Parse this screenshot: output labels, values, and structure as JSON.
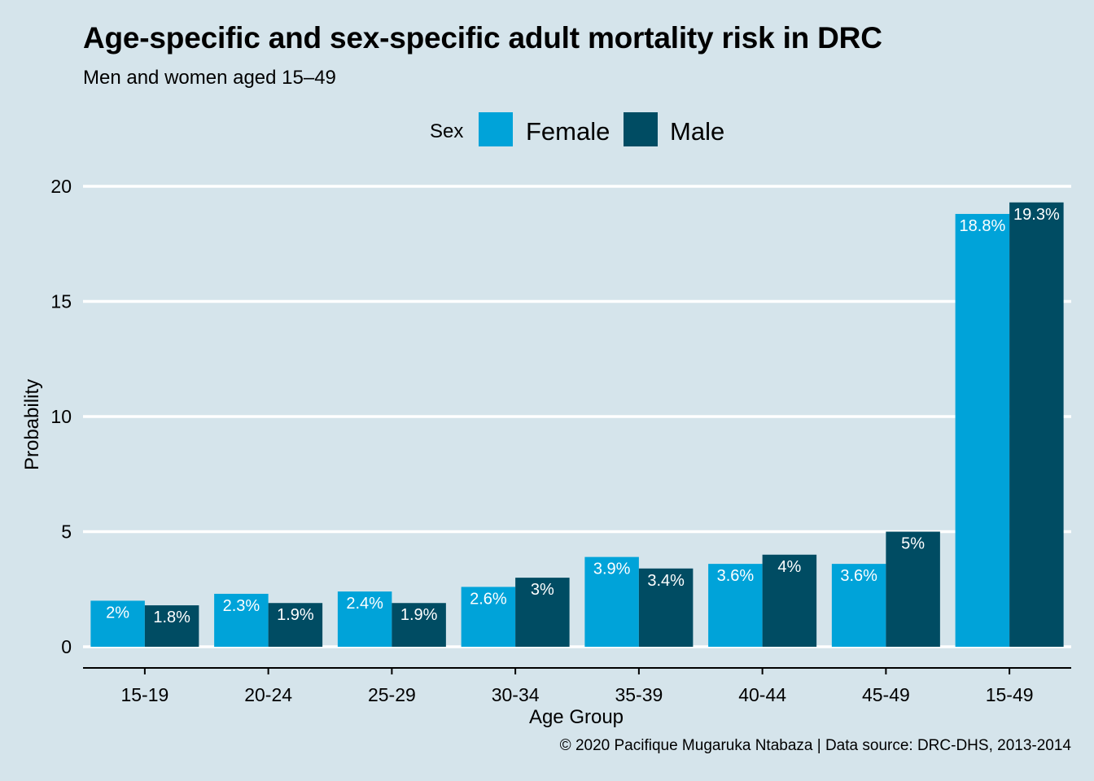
{
  "chart_data": {
    "type": "bar",
    "title": "Age-specific and sex-specific adult mortality risk in DRC",
    "subtitle": "Men and women aged 15–49",
    "caption": "© 2020 Pacifique Mugaruka Ntabaza | Data source: DRC-DHS, 2013-2014",
    "xlabel": "Age Group",
    "ylabel": "Probability",
    "ylim": [
      0,
      20
    ],
    "yticks": [
      0,
      5,
      10,
      15,
      20
    ],
    "categories": [
      "15-19",
      "20-24",
      "25-29",
      "30-34",
      "35-39",
      "40-44",
      "45-49",
      "15-49"
    ],
    "legend": {
      "title": "Sex",
      "placement": "top"
    },
    "grid": "horizontal major lines",
    "series": [
      {
        "name": "Female",
        "color": "#00a3d9",
        "values": [
          2,
          2.3,
          2.4,
          2.6,
          3.9,
          3.6,
          3.6,
          18.8
        ],
        "labels": [
          "2%",
          "2.3%",
          "2.4%",
          "2.6%",
          "3.9%",
          "3.6%",
          "3.6%",
          "18.8%"
        ]
      },
      {
        "name": "Male",
        "color": "#004c63",
        "values": [
          1.8,
          1.9,
          1.9,
          3,
          3.4,
          4,
          5,
          19.3
        ],
        "labels": [
          "1.8%",
          "1.9%",
          "1.9%",
          "3%",
          "3.4%",
          "4%",
          "5%",
          "19.3%"
        ]
      }
    ]
  }
}
